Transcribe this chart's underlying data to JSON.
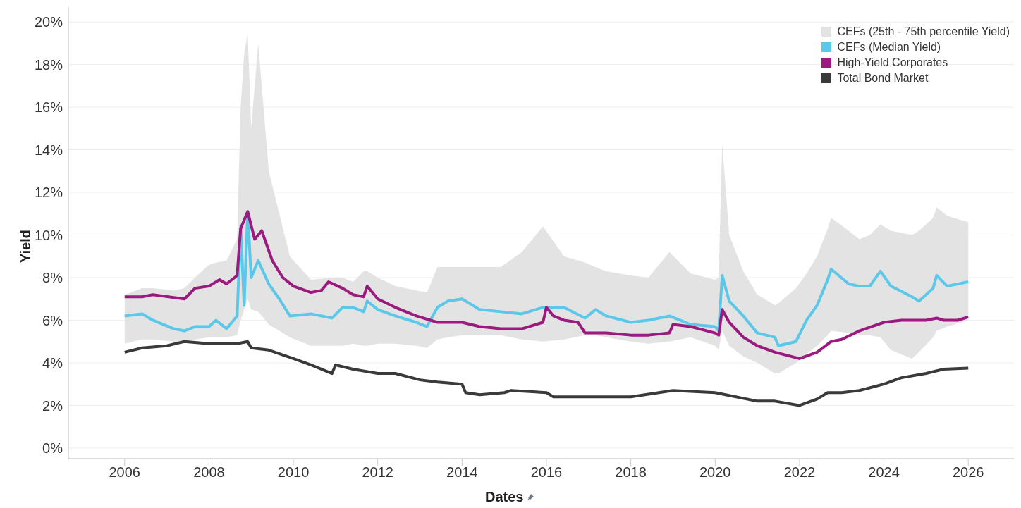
{
  "chart_data": {
    "type": "line",
    "xlabel": "Dates",
    "ylabel": "Yield",
    "annotations": [
      "CEFs (25th - 75th percentile Yield)"
    ],
    "xlim": [
      "2004-09",
      "2027-02"
    ],
    "xticks": [
      "2006",
      "2008",
      "2010",
      "2012",
      "2014",
      "2016",
      "2018",
      "2020",
      "2022",
      "2024",
      "2026"
    ],
    "ylim": [
      -0.5,
      20.7
    ],
    "yticks": [
      {
        "value": 0,
        "label": "0%"
      },
      {
        "value": 2,
        "label": "2%"
      },
      {
        "value": 4,
        "label": "4%"
      },
      {
        "value": 6,
        "label": "6%"
      },
      {
        "value": 8,
        "label": "8%"
      },
      {
        "value": 10,
        "label": "10%"
      },
      {
        "value": 12,
        "label": "12%"
      },
      {
        "value": 14,
        "label": "14%"
      },
      {
        "value": 16,
        "label": "16%"
      },
      {
        "value": 18,
        "label": "18%"
      },
      {
        "value": 20,
        "label": "20%"
      }
    ],
    "grid": "y",
    "legend": "top right",
    "marker": "none",
    "line_style": "solid",
    "series": [
      {
        "name": "CEFs (Median Yield)",
        "color": "#5bc8ea",
        "x": [
          "2006-01",
          "2006-06",
          "2006-09",
          "2007-03",
          "2007-06",
          "2007-09",
          "2008-01",
          "2008-03",
          "2008-06",
          "2008-09",
          "2008-10",
          "2008-11",
          "2008-12",
          "2009-01",
          "2009-03",
          "2009-06",
          "2009-09",
          "2009-12",
          "2010-06",
          "2010-12",
          "2011-03",
          "2011-06",
          "2011-09",
          "2011-10",
          "2012-01",
          "2012-06",
          "2012-12",
          "2013-03",
          "2013-06",
          "2013-09",
          "2014-01",
          "2014-06",
          "2014-12",
          "2015-06",
          "2015-12",
          "2016-06",
          "2016-12",
          "2017-03",
          "2017-06",
          "2018-01",
          "2018-06",
          "2018-12",
          "2019-06",
          "2020-01",
          "2020-02",
          "2020-03",
          "2020-05",
          "2020-09",
          "2021-01",
          "2021-06",
          "2021-07",
          "2021-12",
          "2022-03",
          "2022-06",
          "2022-09",
          "2022-10",
          "2023-03",
          "2023-06",
          "2023-09",
          "2023-12",
          "2024-03",
          "2024-09",
          "2024-11",
          "2025-03",
          "2025-04",
          "2025-07",
          "2026-01"
        ],
        "values": [
          6.2,
          6.3,
          6.0,
          5.6,
          5.5,
          5.7,
          5.7,
          6.0,
          5.6,
          6.2,
          10.4,
          6.7,
          11.1,
          8.0,
          8.8,
          7.7,
          7.0,
          6.2,
          6.3,
          6.1,
          6.6,
          6.6,
          6.4,
          6.9,
          6.5,
          6.2,
          5.9,
          5.7,
          6.6,
          6.9,
          7.0,
          6.5,
          6.4,
          6.3,
          6.6,
          6.6,
          6.1,
          6.5,
          6.2,
          5.9,
          6.0,
          6.2,
          5.8,
          5.7,
          5.5,
          8.1,
          6.9,
          6.2,
          5.4,
          5.2,
          4.8,
          5.0,
          6.0,
          6.7,
          7.9,
          8.4,
          7.7,
          7.6,
          7.6,
          8.3,
          7.6,
          7.1,
          6.9,
          7.5,
          8.1,
          7.6,
          7.8
        ],
        "lower": [
          4.9,
          5.1,
          5.1,
          5.0,
          5.0,
          5.1,
          5.2,
          5.2,
          5.2,
          5.3,
          6.0,
          6.5,
          7.0,
          6.5,
          6.4,
          5.8,
          5.5,
          5.2,
          4.8,
          4.8,
          4.8,
          4.9,
          4.8,
          4.8,
          4.9,
          4.9,
          4.8,
          4.7,
          5.1,
          5.2,
          5.3,
          5.3,
          5.3,
          5.1,
          5.0,
          5.1,
          5.3,
          5.3,
          5.2,
          5.0,
          4.9,
          5.0,
          5.2,
          4.8,
          4.6,
          5.5,
          4.8,
          4.3,
          4.0,
          3.5,
          3.5,
          4.0,
          4.4,
          4.8,
          5.3,
          5.5,
          5.4,
          5.3,
          5.3,
          5.2,
          4.6,
          4.2,
          4.5,
          5.2,
          5.5,
          5.7,
          6.0
        ],
        "upper": [
          7.2,
          7.5,
          7.5,
          7.4,
          7.5,
          8.0,
          8.6,
          8.7,
          8.8,
          9.8,
          16.0,
          18.5,
          19.5,
          15.0,
          19.0,
          13.0,
          11.0,
          9.0,
          7.9,
          8.0,
          8.0,
          7.8,
          8.3,
          8.3,
          8.0,
          7.6,
          7.4,
          7.3,
          8.5,
          8.5,
          8.5,
          8.5,
          8.5,
          9.2,
          10.4,
          9.0,
          8.7,
          8.5,
          8.3,
          8.1,
          8.0,
          9.2,
          8.2,
          7.9,
          8.0,
          14.3,
          10.0,
          8.3,
          7.2,
          6.7,
          6.8,
          7.5,
          8.2,
          9.0,
          10.3,
          10.8,
          10.2,
          9.8,
          10.0,
          10.5,
          10.2,
          10.0,
          10.2,
          10.8,
          11.3,
          10.9,
          10.6
        ]
      },
      {
        "name": "High-Yield Corporates",
        "color": "#9b1a7e",
        "x": [
          "2006-01",
          "2006-06",
          "2006-09",
          "2007-06",
          "2007-09",
          "2008-01",
          "2008-04",
          "2008-06",
          "2008-09",
          "2008-10",
          "2008-12",
          "2009-02",
          "2009-04",
          "2009-07",
          "2009-10",
          "2010-01",
          "2010-06",
          "2010-09",
          "2010-11",
          "2011-03",
          "2011-06",
          "2011-09",
          "2011-10",
          "2012-01",
          "2012-06",
          "2012-12",
          "2013-06",
          "2014-01",
          "2014-06",
          "2014-12",
          "2015-06",
          "2015-12",
          "2016-01",
          "2016-03",
          "2016-06",
          "2016-10",
          "2016-12",
          "2017-06",
          "2018-01",
          "2018-06",
          "2018-12",
          "2019-01",
          "2019-06",
          "2020-01",
          "2020-02",
          "2020-03",
          "2020-05",
          "2020-09",
          "2021-01",
          "2021-06",
          "2022-01",
          "2022-06",
          "2022-10",
          "2023-01",
          "2023-06",
          "2024-01",
          "2024-06",
          "2025-01",
          "2025-04",
          "2025-06",
          "2025-10",
          "2026-01"
        ],
        "values": [
          7.1,
          7.1,
          7.2,
          7.0,
          7.5,
          7.6,
          7.9,
          7.7,
          8.1,
          10.3,
          11.1,
          9.8,
          10.2,
          8.8,
          8.0,
          7.6,
          7.3,
          7.4,
          7.8,
          7.5,
          7.2,
          7.1,
          7.6,
          7.0,
          6.6,
          6.2,
          5.9,
          5.9,
          5.7,
          5.6,
          5.6,
          5.9,
          6.6,
          6.2,
          6.0,
          5.9,
          5.4,
          5.4,
          5.3,
          5.3,
          5.4,
          5.8,
          5.7,
          5.4,
          5.3,
          6.5,
          5.9,
          5.2,
          4.8,
          4.5,
          4.2,
          4.5,
          5.0,
          5.1,
          5.5,
          5.9,
          6.0,
          6.0,
          6.1,
          6.0,
          6.0,
          6.15
        ]
      },
      {
        "name": "Total Bond Market",
        "color": "#3a3a3a",
        "x": [
          "2006-01",
          "2006-06",
          "2007-01",
          "2007-06",
          "2008-01",
          "2008-09",
          "2008-12",
          "2009-01",
          "2009-06",
          "2010-01",
          "2010-06",
          "2010-12",
          "2011-01",
          "2011-06",
          "2012-01",
          "2012-06",
          "2013-01",
          "2013-06",
          "2014-01",
          "2014-02",
          "2014-06",
          "2015-01",
          "2015-03",
          "2016-01",
          "2016-03",
          "2017-01",
          "2018-01",
          "2019-01",
          "2020-01",
          "2021-01",
          "2021-06",
          "2022-01",
          "2022-06",
          "2022-09",
          "2023-01",
          "2023-06",
          "2024-01",
          "2024-06",
          "2025-01",
          "2025-06",
          "2026-01"
        ],
        "values": [
          4.5,
          4.7,
          4.8,
          5.0,
          4.9,
          4.9,
          5.0,
          4.7,
          4.6,
          4.2,
          3.9,
          3.5,
          3.9,
          3.7,
          3.5,
          3.5,
          3.2,
          3.1,
          3.0,
          2.6,
          2.5,
          2.6,
          2.7,
          2.6,
          2.4,
          2.4,
          2.4,
          2.7,
          2.6,
          2.2,
          2.2,
          2.0,
          2.3,
          2.6,
          2.6,
          2.7,
          3.0,
          3.3,
          3.5,
          3.7,
          3.75
        ]
      }
    ]
  }
}
